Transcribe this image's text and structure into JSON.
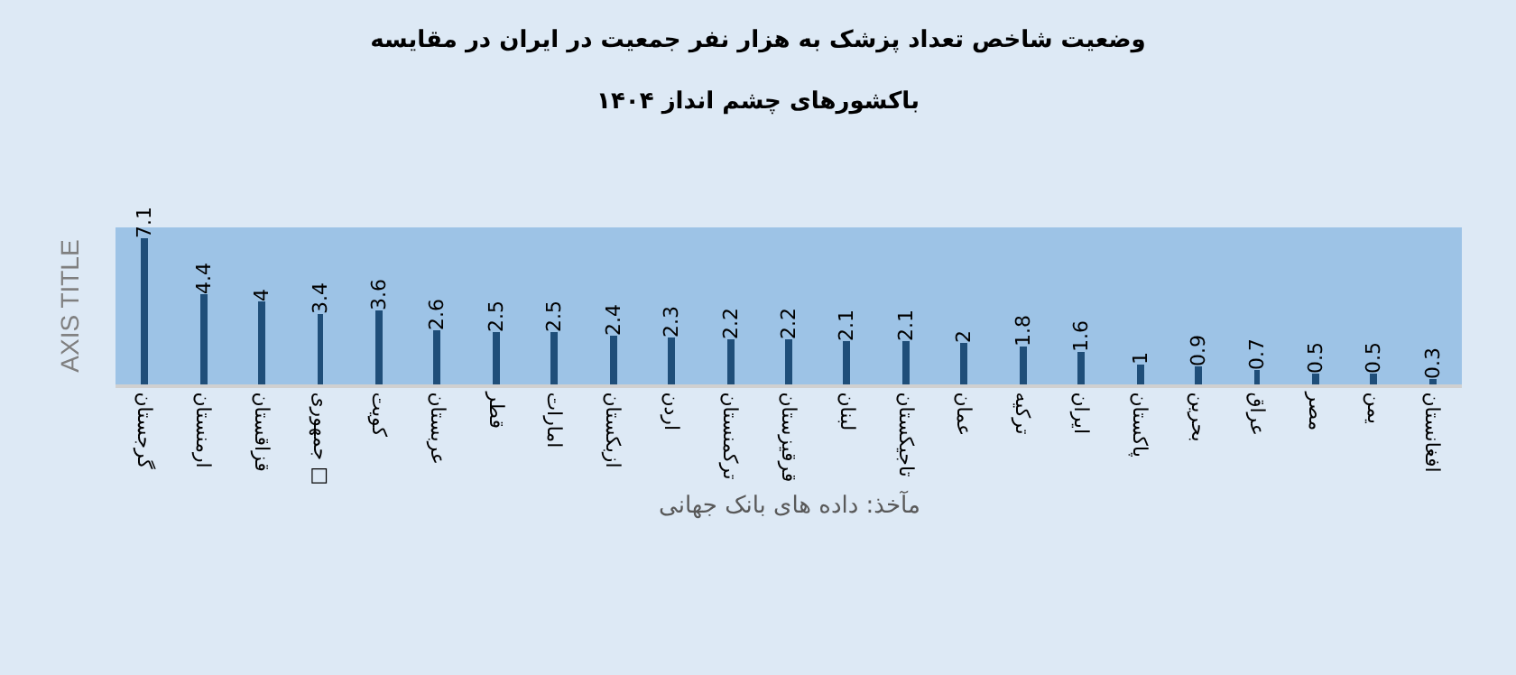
{
  "chart_data": {
    "type": "bar",
    "title": "وضعیت شاخص تعداد پزشک به هزار نفر جمعیت در ایران در مقایسه",
    "subtitle": "باکشورهای چشم انداز ۱۴۰۴",
    "ylabel": "AXIS TITLE",
    "categories": [
      "گرجستان",
      "ارمنستان",
      "قزاقستان",
      "جمهوری □",
      "کویت",
      "عربستان",
      "قطر",
      "امارات",
      "ازبکستان",
      "اردن",
      "ترکمنستان",
      "قرقیزستان",
      "لبنان",
      "تاجیکستان",
      "عمان",
      "ترکیه",
      "ایران",
      "پاکستان",
      "بحرین",
      "عراق",
      "مصر",
      "یمن",
      "افغانستان"
    ],
    "values": [
      7.1,
      4.4,
      4,
      3.4,
      3.6,
      2.6,
      2.5,
      2.5,
      2.4,
      2.3,
      2.2,
      2.2,
      2.1,
      2.1,
      2,
      1.8,
      1.6,
      1,
      0.9,
      0.7,
      0.5,
      0.5,
      0.3
    ],
    "color": "#1f4e79",
    "data_labels": true,
    "tick_labels": "x",
    "grid": false,
    "annotations": [
      "مآخذ: داده های بانک جهانی"
    ]
  }
}
